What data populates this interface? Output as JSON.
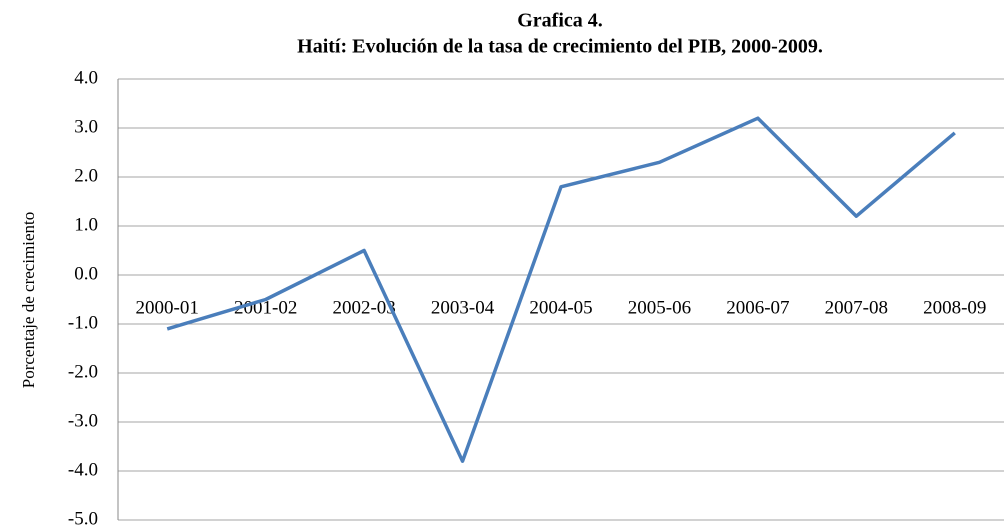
{
  "chart_data": {
    "type": "line",
    "title": "Grafica 4.",
    "subtitle": "Haití: Evolución de la tasa de crecimiento del PIB, 2000-2009.",
    "y_label": "Porcentaje de crecimiento",
    "categories": [
      "2000-01",
      "2001-02",
      "2002-03",
      "2003-04",
      "2004-05",
      "2005-06",
      "2006-07",
      "2007-08",
      "2008-09"
    ],
    "series": [
      {
        "name": "PIB",
        "color": "#4a7ebb",
        "values": [
          -1.1,
          -0.5,
          0.5,
          -3.8,
          1.8,
          2.3,
          3.2,
          1.2,
          2.9
        ]
      }
    ],
    "ylim": [
      -5,
      4
    ],
    "yticks": [
      {
        "value": -5,
        "label": "-5.0"
      },
      {
        "value": -4,
        "label": "-4.0"
      },
      {
        "value": -3,
        "label": "-3.0"
      },
      {
        "value": -2,
        "label": "-2.0"
      },
      {
        "value": -1,
        "label": "-1.0"
      },
      {
        "value": 0,
        "label": "0.0"
      },
      {
        "value": 1,
        "label": "1.0"
      },
      {
        "value": 2,
        "label": "2.0"
      },
      {
        "value": 3,
        "label": "3.0"
      },
      {
        "value": 4,
        "label": "4.0"
      }
    ],
    "grid": true
  }
}
